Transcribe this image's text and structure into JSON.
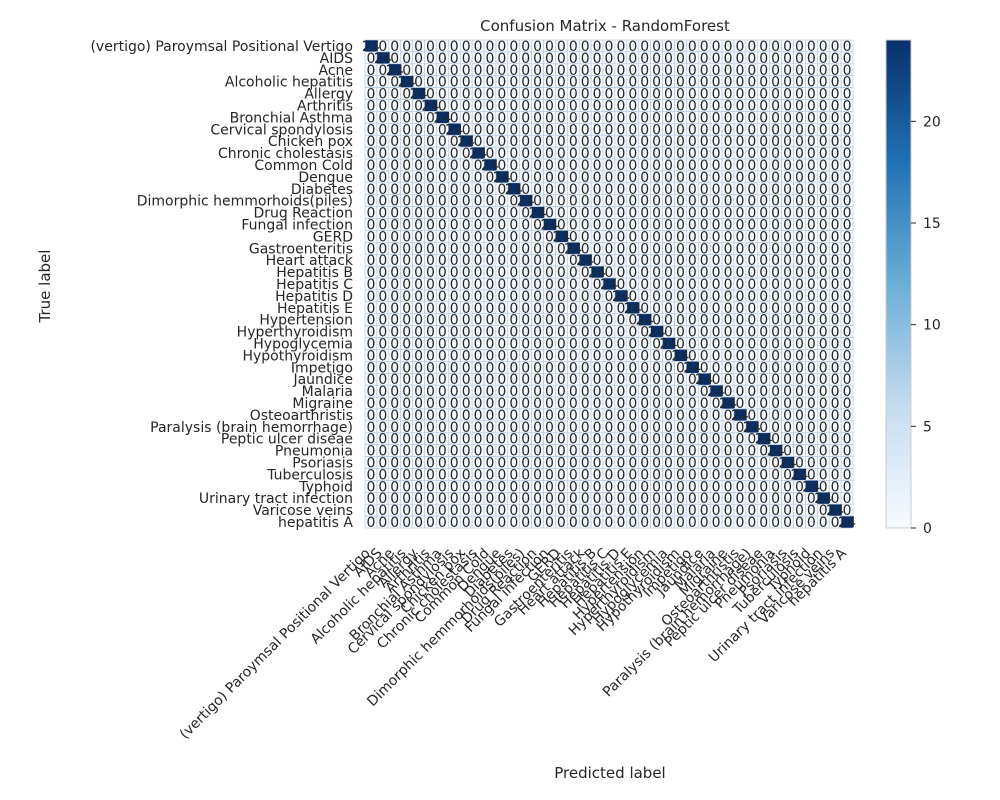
{
  "chart_data": {
    "type": "heatmap",
    "title": "Confusion Matrix - RandomForest",
    "xlabel": "Predicted label",
    "ylabel": "True label",
    "labels": [
      "(vertigo) Paroymsal  Positional Vertigo",
      "AIDS",
      "Acne",
      "Alcoholic hepatitis",
      "Allergy",
      "Arthritis",
      "Bronchial Asthma",
      "Cervical spondylosis",
      "Chicken pox",
      "Chronic cholestasis",
      "Common Cold",
      "Dengue",
      "Diabetes ",
      "Dimorphic hemmorhoids(piles)",
      "Drug Reaction",
      "Fungal infection",
      "GERD",
      "Gastroenteritis",
      "Heart attack",
      "Hepatitis B",
      "Hepatitis C",
      "Hepatitis D",
      "Hepatitis E",
      "Hypertension ",
      "Hyperthyroidism",
      "Hypoglycemia",
      "Hypothyroidism",
      "Impetigo",
      "Jaundice",
      "Malaria",
      "Migraine",
      "Osteoarthristis",
      "Paralysis (brain hemorrhage)",
      "Peptic ulcer diseae",
      "Pneumonia",
      "Psoriasis",
      "Tuberculosis",
      "Typhoid",
      "Urinary tract infection",
      "Varicose veins",
      "hepatitis A"
    ],
    "diagonal_value": 24,
    "off_diagonal_value": 0,
    "colorbar": {
      "min": 0,
      "max": 24,
      "ticks": [
        0,
        5,
        10,
        15,
        20
      ]
    },
    "colors": {
      "low": "#f7fbff",
      "mid": "#6baed6",
      "high": "#08306b",
      "grid": "#b0c4de",
      "text_dark": "#08306b",
      "text_light": "#f7fbff"
    }
  }
}
